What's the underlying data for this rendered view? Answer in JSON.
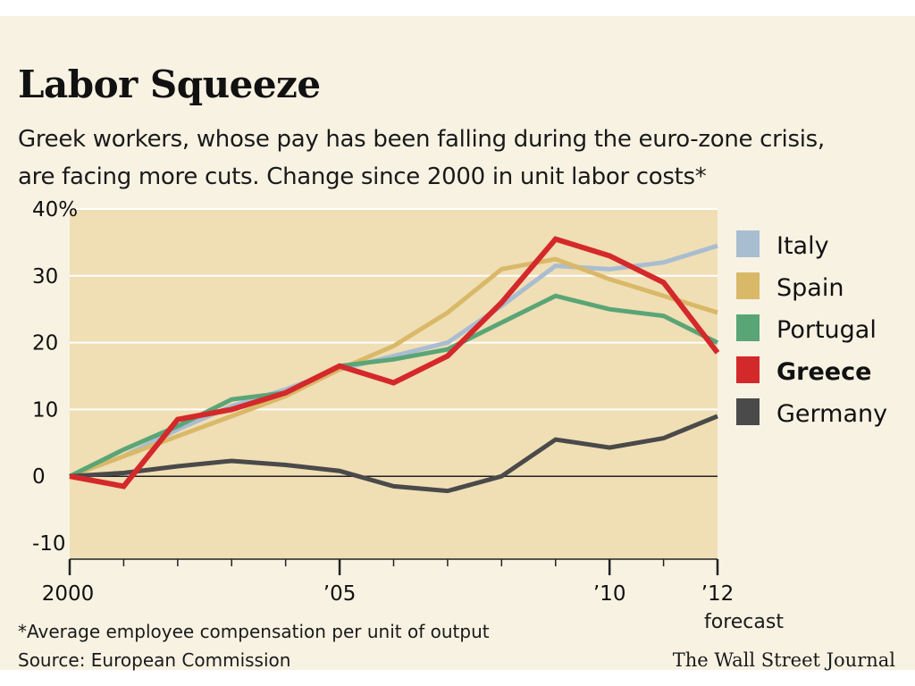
{
  "header": {
    "title": "Labor Squeeze",
    "subtitle_line1": "Greek workers, whose pay has been falling during the euro-zone crisis,",
    "subtitle_line2": "are facing more cuts. Change since 2000 in unit labor costs*"
  },
  "footer": {
    "footnote": "*Average employee compensation per unit of output",
    "source": "Source: European Commission",
    "credit": "The Wall Street Journal",
    "forecast_label": "forecast"
  },
  "colors": {
    "background": "#f8f2e3",
    "plot_area": "#f0deb5",
    "Italy": "#a9bdd1",
    "Spain": "#d9b968",
    "Portugal": "#5aa576",
    "Greece": "#d4292b",
    "Germany": "#4a4a4a"
  },
  "chart_data": {
    "type": "line",
    "title": "Labor Squeeze",
    "xlabel": "",
    "ylabel": "",
    "x": [
      2000,
      2001,
      2002,
      2003,
      2004,
      2005,
      2006,
      2007,
      2008,
      2009,
      2010,
      2011,
      2012
    ],
    "xlim": [
      2000,
      2012
    ],
    "ylim": [
      -10,
      40
    ],
    "x_tick_values": [
      2000,
      2005,
      2010,
      2012
    ],
    "x_tick_labels": [
      "2000",
      "’05",
      "’10",
      "’12"
    ],
    "y_tick_values": [
      40,
      30,
      20,
      10,
      0,
      -10
    ],
    "y_tick_labels": [
      "40%",
      "30",
      "20",
      "10",
      "0",
      "-10"
    ],
    "grid": true,
    "legend_position": "right",
    "series": [
      {
        "name": "Italy",
        "values": [
          0,
          3,
          7,
          10.5,
          13,
          16,
          18,
          20,
          25.5,
          31.5,
          31,
          32,
          34.5
        ]
      },
      {
        "name": "Spain",
        "values": [
          0,
          3,
          6,
          9,
          12,
          16,
          19.5,
          24.5,
          31,
          32.5,
          29.5,
          27,
          24.5
        ]
      },
      {
        "name": "Portugal",
        "values": [
          0,
          4,
          7.5,
          11.5,
          12.5,
          16.5,
          17.5,
          19,
          23,
          27,
          25,
          24,
          20
        ]
      },
      {
        "name": "Greece",
        "values": [
          0,
          -1.5,
          8.5,
          10,
          12.5,
          16.5,
          14,
          18,
          26,
          35.5,
          33,
          29,
          18.5
        ]
      },
      {
        "name": "Germany",
        "values": [
          0,
          0.5,
          1.5,
          2.3,
          1.7,
          0.8,
          -1.5,
          -2.2,
          0,
          5.5,
          4.3,
          5.7,
          9
        ]
      }
    ]
  }
}
